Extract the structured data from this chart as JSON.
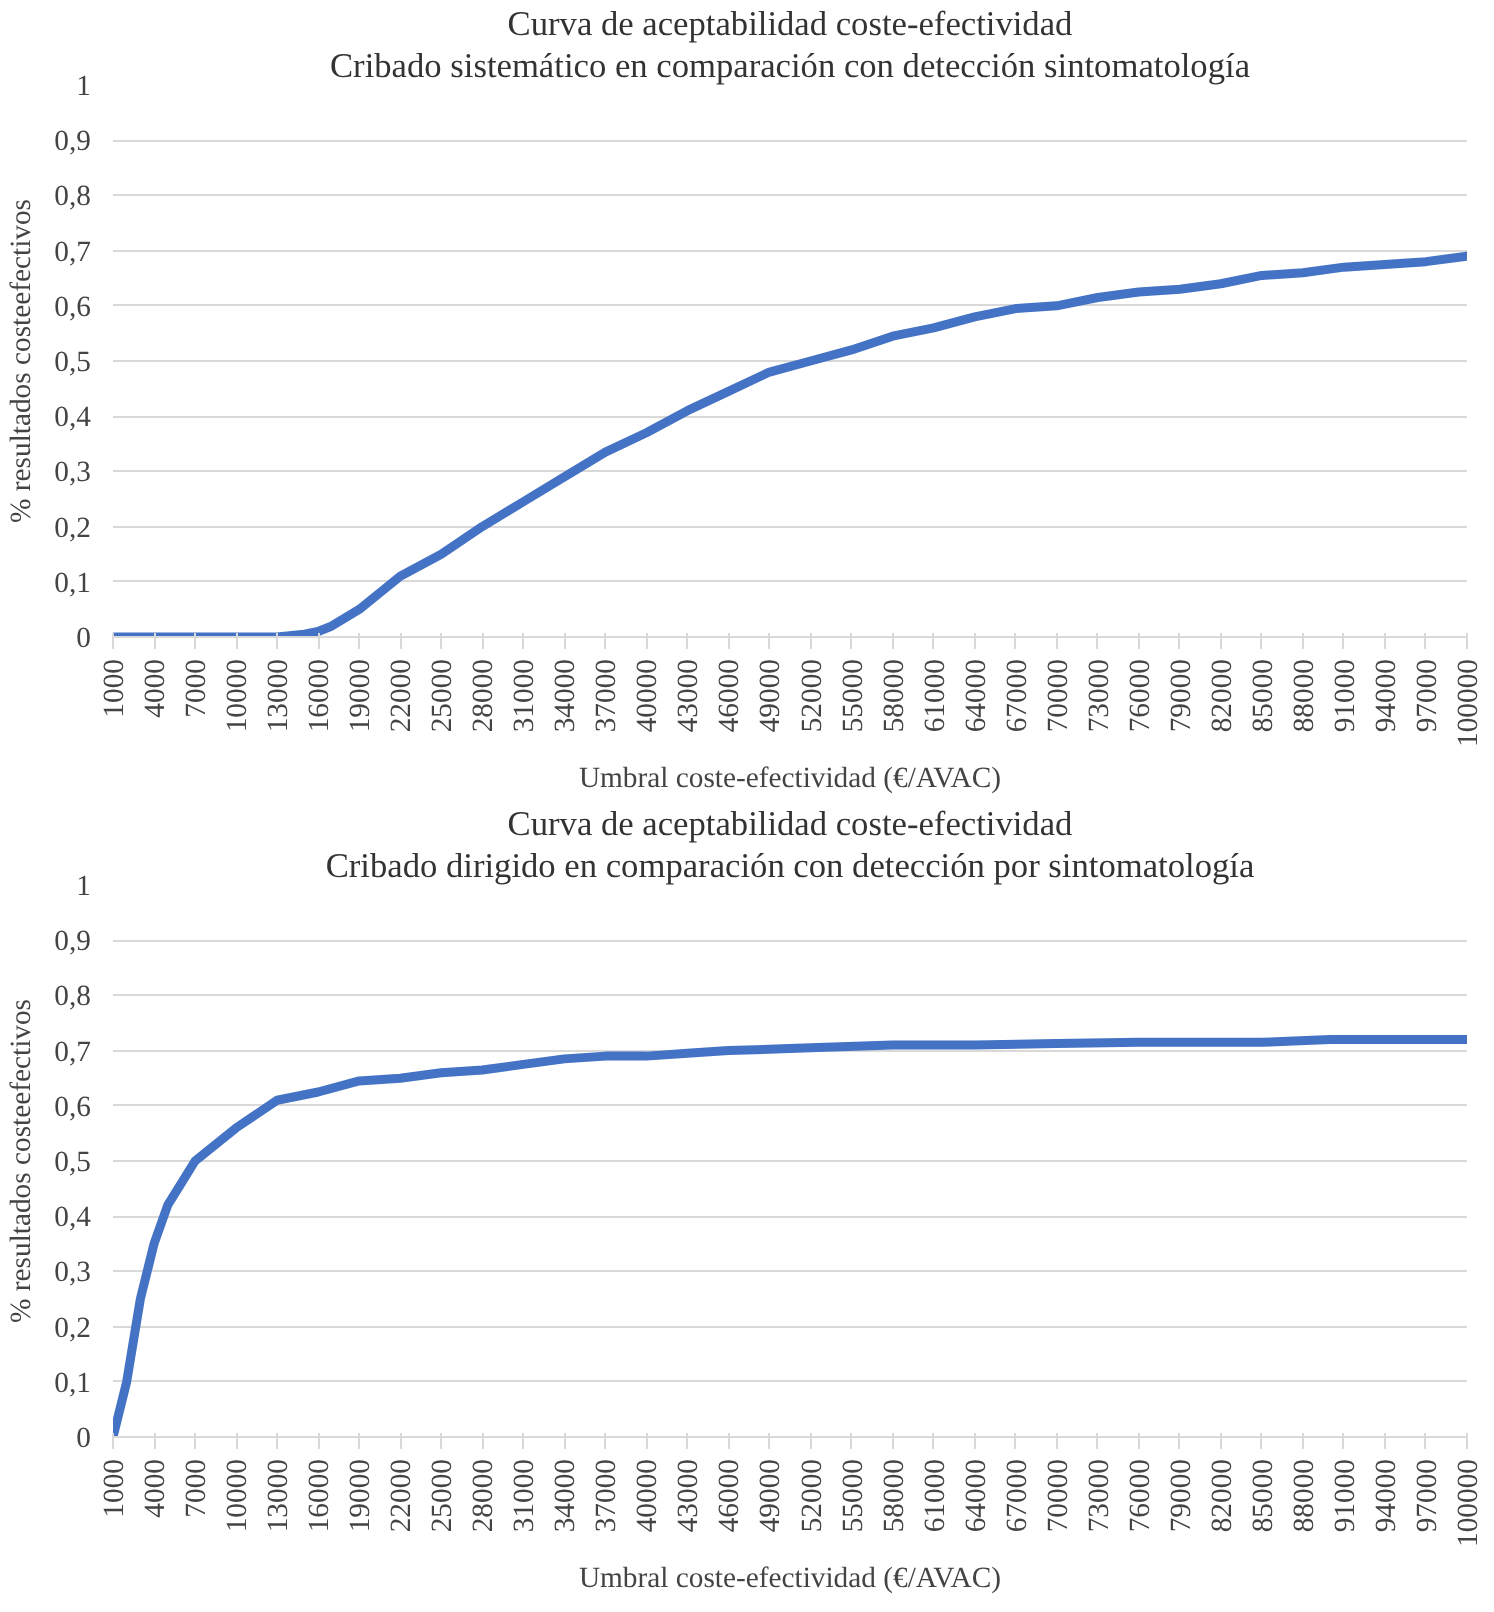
{
  "chart_data": [
    {
      "type": "line",
      "title": "Curva de aceptabilidad coste-efectividad",
      "subtitle": "Cribado sistemático en comparación con detección sintomatología",
      "xlabel": "Umbral coste-efectividad (€/AVAC)",
      "ylabel": "% resultados costeefectivos",
      "x": [
        1000,
        4000,
        7000,
        10000,
        13000,
        15000,
        16000,
        17000,
        19000,
        22000,
        25000,
        28000,
        31000,
        34000,
        37000,
        40000,
        43000,
        46000,
        49000,
        52000,
        55000,
        58000,
        61000,
        64000,
        67000,
        70000,
        73000,
        76000,
        79000,
        82000,
        85000,
        88000,
        91000,
        94000,
        97000,
        100000
      ],
      "series": [
        {
          "color": "#4472c4",
          "values": [
            0,
            0,
            0,
            0,
            0,
            0.005,
            0.01,
            0.02,
            0.05,
            0.11,
            0.15,
            0.2,
            0.245,
            0.29,
            0.335,
            0.37,
            0.41,
            0.445,
            0.48,
            0.5,
            0.52,
            0.545,
            0.56,
            0.58,
            0.595,
            0.6,
            0.615,
            0.625,
            0.63,
            0.64,
            0.655,
            0.66,
            0.67,
            0.675,
            0.68,
            0.69
          ]
        }
      ],
      "xlim": [
        1000,
        100000
      ],
      "xticks": [
        1000,
        4000,
        7000,
        10000,
        13000,
        16000,
        19000,
        22000,
        25000,
        28000,
        31000,
        34000,
        37000,
        40000,
        43000,
        46000,
        49000,
        52000,
        55000,
        58000,
        61000,
        64000,
        67000,
        70000,
        73000,
        76000,
        79000,
        82000,
        85000,
        88000,
        91000,
        94000,
        97000,
        100000
      ],
      "ylim": [
        0,
        1
      ],
      "yticks": [
        0,
        {
          "value": 0.1,
          "label": "0,1"
        },
        {
          "value": 0.2,
          "label": "0,2"
        },
        {
          "value": 0.3,
          "label": "0,3"
        },
        {
          "value": 0.4,
          "label": "0,4"
        },
        {
          "value": 0.5,
          "label": "0,5"
        },
        {
          "value": 0.6,
          "label": "0,6"
        },
        {
          "value": 0.7,
          "label": "0,7"
        },
        {
          "value": 0.8,
          "label": "0,8"
        },
        {
          "value": 0.9,
          "label": "0,9"
        },
        1
      ],
      "grid": "y"
    },
    {
      "type": "line",
      "title": "Curva de aceptabilidad coste-efectividad",
      "subtitle": "Cribado dirigido en comparación con detección por sintomatología",
      "xlabel": "Umbral coste-efectividad (€/AVAC)",
      "ylabel": "% resultados costeefectivos",
      "x": [
        1000,
        2000,
        3000,
        4000,
        5000,
        6000,
        7000,
        8000,
        10000,
        13000,
        16000,
        19000,
        22000,
        25000,
        28000,
        31000,
        34000,
        37000,
        40000,
        43000,
        46000,
        52000,
        58000,
        64000,
        70000,
        76000,
        85000,
        90000,
        100000
      ],
      "series": [
        {
          "color": "#4472c4",
          "values": [
            0,
            0.1,
            0.25,
            0.35,
            0.42,
            0.46,
            0.5,
            0.52,
            0.56,
            0.61,
            0.625,
            0.645,
            0.65,
            0.66,
            0.665,
            0.675,
            0.685,
            0.69,
            0.69,
            0.695,
            0.7,
            0.705,
            0.71,
            0.71,
            0.713,
            0.715,
            0.715,
            0.72,
            0.72
          ]
        }
      ],
      "xlim": [
        1000,
        100000
      ],
      "xticks": [
        1000,
        4000,
        7000,
        10000,
        13000,
        16000,
        19000,
        22000,
        25000,
        28000,
        31000,
        34000,
        37000,
        40000,
        43000,
        46000,
        49000,
        52000,
        55000,
        58000,
        61000,
        64000,
        67000,
        70000,
        73000,
        76000,
        79000,
        82000,
        85000,
        88000,
        91000,
        94000,
        97000,
        100000
      ],
      "ylim": [
        0,
        1
      ],
      "yticks": [
        0,
        {
          "value": 0.1,
          "label": "0,1"
        },
        {
          "value": 0.2,
          "label": "0,2"
        },
        {
          "value": 0.3,
          "label": "0,3"
        },
        {
          "value": 0.4,
          "label": "0,4"
        },
        {
          "value": 0.5,
          "label": "0,5"
        },
        {
          "value": 0.6,
          "label": "0,6"
        },
        {
          "value": 0.7,
          "label": "0,7"
        },
        {
          "value": 0.8,
          "label": "0,8"
        },
        {
          "value": 0.9,
          "label": "0,9"
        },
        1
      ],
      "grid": "y"
    }
  ]
}
